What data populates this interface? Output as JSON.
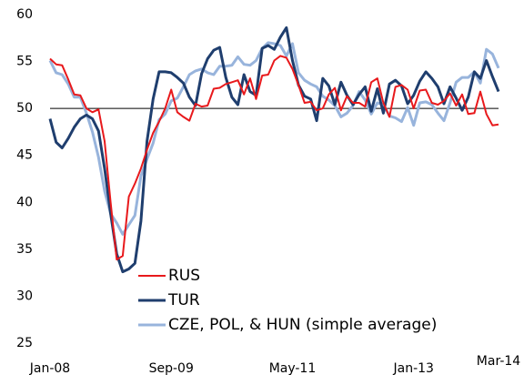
{
  "chart_data": {
    "type": "line",
    "categories": [
      "Jan-08",
      null,
      null,
      null,
      null,
      null,
      null,
      null,
      null,
      null,
      null,
      null,
      null,
      null,
      null,
      null,
      null,
      null,
      null,
      null,
      "Sep-09",
      null,
      null,
      null,
      null,
      null,
      null,
      null,
      null,
      null,
      null,
      null,
      null,
      null,
      null,
      null,
      null,
      null,
      null,
      null,
      "May-11",
      null,
      null,
      null,
      null,
      null,
      null,
      null,
      null,
      null,
      null,
      null,
      null,
      null,
      null,
      null,
      null,
      null,
      null,
      null,
      "Jan-13",
      null,
      null,
      null,
      null,
      null,
      null,
      null,
      null,
      null,
      null,
      null,
      null,
      null,
      "Mar-14"
    ],
    "series": [
      {
        "name": "RUS",
        "color": "#e8191c",
        "width": 2,
        "values": [
          55.3,
          54.7,
          54.6,
          53.1,
          51.5,
          51.4,
          50.0,
          49.6,
          49.9,
          46.5,
          40.0,
          33.9,
          34.3,
          40.6,
          42.0,
          43.6,
          45.6,
          47.4,
          48.6,
          50.0,
          52.0,
          49.6,
          49.1,
          48.7,
          50.5,
          50.2,
          50.3,
          52.1,
          52.2,
          52.6,
          52.8,
          53.0,
          51.5,
          53.2,
          51.0,
          53.5,
          53.6,
          55.1,
          55.6,
          55.4,
          54.2,
          52.5,
          50.6,
          50.7,
          49.8,
          50.0,
          51.5,
          52.2,
          49.8,
          51.3,
          50.6,
          50.6,
          50.2,
          52.8,
          53.2,
          50.6,
          49.1,
          52.3,
          52.5,
          52.0,
          50.0,
          51.9,
          52.0,
          50.6,
          50.4,
          50.8,
          51.6,
          50.3,
          51.5,
          49.4,
          49.5,
          51.8,
          49.4,
          48.2,
          48.3
        ]
      },
      {
        "name": "TUR",
        "color": "#1f3e6e",
        "width": 3,
        "values": [
          48.9,
          46.4,
          45.8,
          46.8,
          48.0,
          48.9,
          49.3,
          48.9,
          47.6,
          43.6,
          38.8,
          34.5,
          32.6,
          32.9,
          33.5,
          38.0,
          46.5,
          51.0,
          53.9,
          53.9,
          53.8,
          53.3,
          52.7,
          51.2,
          50.3,
          53.7,
          55.3,
          56.2,
          56.5,
          53.3,
          51.2,
          50.4,
          53.6,
          51.8,
          51.4,
          56.4,
          56.7,
          56.3,
          57.6,
          58.6,
          55.1,
          52.5,
          51.3,
          51.0,
          48.7,
          53.2,
          52.4,
          50.4,
          52.8,
          51.4,
          50.4,
          51.5,
          52.3,
          49.7,
          52.1,
          49.5,
          52.6,
          53.0,
          52.4,
          50.5,
          51.4,
          52.9,
          53.9,
          53.2,
          52.3,
          50.5,
          52.3,
          51.1,
          49.8,
          51.2,
          53.9,
          53.2,
          55.1,
          53.4,
          51.8
        ]
      },
      {
        "name": "CZE, POL, & HUN (simple average)",
        "color": "#98b4dc",
        "width": 3,
        "values": [
          55.1,
          53.8,
          53.6,
          52.6,
          51.2,
          51.2,
          49.5,
          47.5,
          44.8,
          41.2,
          38.8,
          37.8,
          36.6,
          37.6,
          38.6,
          42.8,
          44.6,
          46.3,
          48.8,
          49.4,
          50.8,
          51.1,
          52.3,
          53.6,
          54.0,
          54.2,
          53.8,
          53.6,
          54.5,
          54.5,
          54.6,
          55.5,
          54.7,
          54.6,
          55.1,
          56.4,
          57.0,
          56.9,
          56.7,
          55.6,
          56.9,
          53.8,
          53.0,
          52.6,
          52.3,
          51.3,
          50.9,
          50.3,
          49.1,
          49.5,
          50.3,
          51.8,
          50.9,
          49.4,
          50.6,
          50.4,
          49.2,
          49.0,
          48.6,
          50.1,
          48.2,
          50.6,
          50.7,
          50.4,
          49.5,
          48.7,
          50.6,
          52.8,
          53.3,
          53.3,
          53.9,
          52.7,
          56.3,
          55.8,
          54.3
        ]
      }
    ],
    "ylim": [
      25,
      60
    ],
    "yticks": [
      25,
      30,
      35,
      40,
      45,
      50,
      55,
      60
    ],
    "hline": 50,
    "legend": "lower center"
  }
}
